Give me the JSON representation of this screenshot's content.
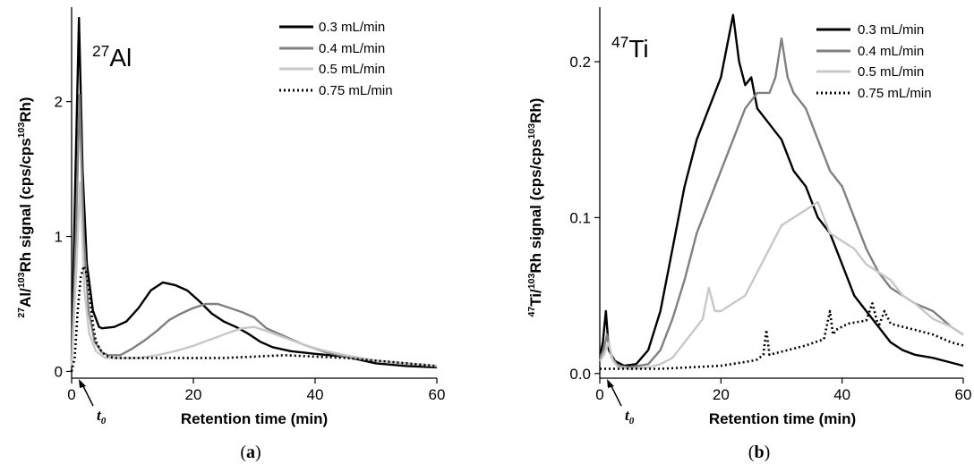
{
  "chart_data": [
    {
      "type": "line",
      "panel_label": "(a)",
      "element": {
        "mass": "27",
        "symbol": "Al"
      },
      "xlabel": "Retention time (min)",
      "ylabel": {
        "p1": "27",
        "p2": "Al/",
        "p3": "103",
        "p4": "Rh signal (cps/cps",
        "p5": "103",
        "p6": "Rh)"
      },
      "xlim": [
        0,
        60
      ],
      "ylim": [
        -0.05,
        2.7
      ],
      "xticks": [
        0,
        20,
        40,
        60
      ],
      "yticks": [
        0,
        1,
        2
      ],
      "annotation": {
        "label": "t",
        "sub": "0",
        "x": 1.5
      },
      "legend_position": "top-right",
      "series": [
        {
          "name": "0.3 mL/min",
          "color": "#000000",
          "dash": "solid",
          "x": [
            0,
            0.6,
            1.2,
            1.8,
            2.5,
            3.5,
            4.5,
            5,
            7,
            9,
            11,
            13,
            15,
            17,
            19,
            21,
            23,
            25,
            27,
            29,
            31,
            33,
            36,
            40,
            45,
            50,
            55,
            60
          ],
          "y": [
            0.08,
            1.4,
            2.62,
            1.5,
            0.8,
            0.45,
            0.33,
            0.32,
            0.33,
            0.37,
            0.47,
            0.6,
            0.66,
            0.64,
            0.6,
            0.52,
            0.43,
            0.37,
            0.33,
            0.28,
            0.22,
            0.18,
            0.15,
            0.13,
            0.11,
            0.06,
            0.04,
            0.03
          ]
        },
        {
          "name": "0.4 mL/min",
          "color": "#808080",
          "dash": "solid",
          "x": [
            0,
            0.7,
            1.3,
            2,
            2.8,
            3.8,
            5,
            6,
            8,
            10,
            12,
            14,
            16,
            18,
            20,
            22,
            24,
            26,
            28,
            30,
            32,
            35,
            38,
            42,
            46,
            50,
            55,
            60
          ],
          "y": [
            0.05,
            1.0,
            2.05,
            1.0,
            0.45,
            0.22,
            0.14,
            0.12,
            0.12,
            0.17,
            0.23,
            0.3,
            0.38,
            0.43,
            0.47,
            0.5,
            0.5,
            0.47,
            0.44,
            0.4,
            0.32,
            0.26,
            0.2,
            0.14,
            0.1,
            0.08,
            0.06,
            0.04
          ]
        },
        {
          "name": "0.5 mL/min",
          "color": "#c8c8c8",
          "dash": "solid",
          "x": [
            0,
            0.7,
            1.4,
            2.1,
            2.9,
            4,
            5.5,
            8,
            11,
            14,
            17,
            20,
            23,
            26,
            28,
            30,
            32,
            35,
            38,
            41,
            45,
            50,
            55,
            60
          ],
          "y": [
            0.04,
            0.7,
            1.4,
            0.6,
            0.28,
            0.15,
            0.1,
            0.1,
            0.1,
            0.12,
            0.15,
            0.19,
            0.24,
            0.29,
            0.32,
            0.33,
            0.3,
            0.25,
            0.2,
            0.16,
            0.12,
            0.08,
            0.06,
            0.04
          ]
        },
        {
          "name": "0.75 mL/min",
          "color": "#000000",
          "dash": "dotted",
          "x": [
            0,
            0.5,
            1,
            1.5,
            2,
            2.5,
            3,
            3.5,
            4,
            5,
            6,
            7,
            8,
            10,
            13,
            16,
            20,
            25,
            30,
            35,
            40,
            45,
            50,
            55,
            60
          ],
          "y": [
            0.0,
            0.1,
            0.45,
            0.7,
            0.78,
            0.72,
            0.55,
            0.35,
            0.22,
            0.14,
            0.11,
            0.1,
            0.1,
            0.1,
            0.1,
            0.1,
            0.1,
            0.1,
            0.11,
            0.12,
            0.11,
            0.1,
            0.08,
            0.06,
            0.04
          ]
        }
      ]
    },
    {
      "type": "line",
      "panel_label": "(b)",
      "element": {
        "mass": "47",
        "symbol": "Ti"
      },
      "xlabel": "Retention time (min)",
      "ylabel": {
        "p1": "47",
        "p2": "Ti/",
        "p3": "103",
        "p4": "Rh signal (cps/cps",
        "p5": "103",
        "p6": "Rh)"
      },
      "xlim": [
        0,
        60
      ],
      "ylim": [
        -0.003,
        0.235
      ],
      "xticks": [
        0,
        20,
        40,
        60
      ],
      "yticks": [
        0.0,
        0.1,
        0.2
      ],
      "ytick_labels": [
        "0.0",
        "0.1",
        "0.2"
      ],
      "annotation": {
        "label": "t",
        "sub": "0",
        "x": 1.5
      },
      "legend_position": "top-right",
      "series": [
        {
          "name": "0.3 mL/min",
          "color": "#000000",
          "dash": "solid",
          "x": [
            0,
            0.5,
            1,
            1.5,
            2.5,
            4,
            6,
            8,
            10,
            12,
            14,
            16,
            18,
            20,
            21,
            22,
            23,
            24,
            25,
            26,
            28,
            30,
            32,
            34,
            36,
            38,
            40,
            42,
            44,
            46,
            48,
            50,
            52,
            55,
            58,
            60
          ],
          "y": [
            0.01,
            0.02,
            0.04,
            0.015,
            0.008,
            0.005,
            0.006,
            0.015,
            0.04,
            0.08,
            0.12,
            0.15,
            0.17,
            0.19,
            0.21,
            0.23,
            0.2,
            0.185,
            0.19,
            0.17,
            0.16,
            0.15,
            0.13,
            0.12,
            0.1,
            0.09,
            0.07,
            0.05,
            0.04,
            0.03,
            0.02,
            0.015,
            0.012,
            0.01,
            0.007,
            0.005
          ]
        },
        {
          "name": "0.4 mL/min",
          "color": "#808080",
          "dash": "solid",
          "x": [
            0,
            0.6,
            1.2,
            2,
            3,
            5,
            8,
            10,
            12,
            14,
            16,
            18,
            20,
            22,
            24,
            26,
            28,
            29,
            30,
            31,
            32,
            34,
            36,
            38,
            40,
            42,
            44,
            46,
            48,
            50,
            52,
            55,
            58,
            60
          ],
          "y": [
            0.01,
            0.015,
            0.025,
            0.01,
            0.005,
            0.004,
            0.006,
            0.015,
            0.035,
            0.06,
            0.09,
            0.11,
            0.13,
            0.15,
            0.17,
            0.18,
            0.18,
            0.19,
            0.215,
            0.19,
            0.18,
            0.17,
            0.15,
            0.13,
            0.12,
            0.1,
            0.08,
            0.065,
            0.055,
            0.05,
            0.045,
            0.04,
            0.03,
            0.025
          ]
        },
        {
          "name": "0.5 mL/min",
          "color": "#c8c8c8",
          "dash": "solid",
          "x": [
            0,
            0.7,
            1.4,
            2.2,
            3,
            5,
            8,
            10,
            12,
            14,
            16,
            17,
            18,
            19,
            20,
            22,
            24,
            26,
            28,
            30,
            32,
            34,
            36,
            38,
            40,
            42,
            44,
            46,
            48,
            50,
            52,
            55,
            58,
            60
          ],
          "y": [
            0.008,
            0.012,
            0.02,
            0.008,
            0.004,
            0.003,
            0.004,
            0.006,
            0.01,
            0.02,
            0.03,
            0.035,
            0.055,
            0.04,
            0.04,
            0.045,
            0.05,
            0.065,
            0.08,
            0.095,
            0.1,
            0.105,
            0.11,
            0.09,
            0.085,
            0.08,
            0.07,
            0.065,
            0.06,
            0.05,
            0.045,
            0.035,
            0.03,
            0.025
          ]
        },
        {
          "name": "0.75 mL/min",
          "color": "#000000",
          "dash": "dotted",
          "x": [
            0,
            2,
            5,
            10,
            15,
            20,
            25,
            26,
            27,
            27.5,
            28,
            30,
            34,
            37,
            38,
            38.5,
            39,
            41,
            44,
            45,
            46,
            47,
            48,
            50,
            52,
            55,
            58,
            60
          ],
          "y": [
            0.003,
            0.003,
            0.003,
            0.003,
            0.004,
            0.005,
            0.008,
            0.009,
            0.012,
            0.028,
            0.012,
            0.014,
            0.018,
            0.022,
            0.04,
            0.025,
            0.028,
            0.032,
            0.034,
            0.045,
            0.03,
            0.04,
            0.032,
            0.03,
            0.028,
            0.025,
            0.02,
            0.018
          ]
        }
      ]
    }
  ]
}
